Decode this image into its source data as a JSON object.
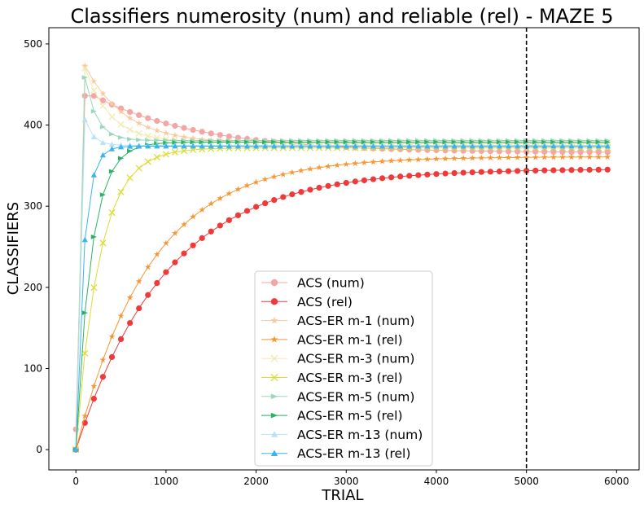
{
  "chart_data": {
    "type": "line",
    "title": "Classifiers numerosity (num) and reliable (rel) - MAZE 5",
    "xlabel": "TRIAL",
    "ylabel": "CLASSIFIERS",
    "xlim": [
      -300,
      6250
    ],
    "ylim": [
      -25,
      520
    ],
    "xticks": [
      0,
      1000,
      2000,
      3000,
      4000,
      5000,
      6000
    ],
    "yticks": [
      0,
      100,
      200,
      300,
      400,
      500
    ],
    "x_step": 100,
    "x_max": 5900,
    "grid": false,
    "legend_position": "lower-center",
    "vline": {
      "x": 5000,
      "style": "dashed",
      "color": "#000000"
    },
    "series": [
      {
        "name": "ACS (num)",
        "color": "#f4a5a5",
        "marker": "circle",
        "y0": 25,
        "peak_x": 200,
        "peak": 436,
        "final": 366,
        "tau": 1200
      },
      {
        "name": "ACS (rel)",
        "color": "#f03a3a",
        "marker": "circle",
        "y0": 0,
        "final": 346,
        "tau": 1000
      },
      {
        "name": "ACS-ER m-1 (num)",
        "color": "#fcc89c",
        "marker": "star",
        "y0": 0,
        "peak_x": 100,
        "peak": 473,
        "final": 377,
        "tau": 450
      },
      {
        "name": "ACS-ER m-1 (rel)",
        "color": "#f79633",
        "marker": "star",
        "y0": 0,
        "final": 361,
        "tau": 820
      },
      {
        "name": "ACS-ER m-3 (num)",
        "color": "#f0ecae",
        "marker": "x",
        "y0": 0,
        "peak_x": 100,
        "peak": 470,
        "final": 379,
        "tau": 280
      },
      {
        "name": "ACS-ER m-3 (rel)",
        "color": "#dcdc32",
        "marker": "x",
        "y0": 0,
        "final": 372,
        "tau": 260
      },
      {
        "name": "ACS-ER m-5 (num)",
        "color": "#9ad8bc",
        "marker": "tri-right",
        "y0": 0,
        "peak_x": 50,
        "peak": 495,
        "final": 381,
        "tau": 130
      },
      {
        "name": "ACS-ER m-5 (rel)",
        "color": "#28b464",
        "marker": "tri-right",
        "y0": 0,
        "final": 379,
        "tau": 170
      },
      {
        "name": "ACS-ER m-13 (num)",
        "color": "#b9e2f7",
        "marker": "tri-up",
        "y0": 0,
        "peak_x": 50,
        "peak": 430,
        "final": 375,
        "tau": 90
      },
      {
        "name": "ACS-ER m-13 (rel)",
        "color": "#3cb4eb",
        "marker": "tri-up",
        "y0": 0,
        "final": 374,
        "tau": 85
      }
    ]
  }
}
